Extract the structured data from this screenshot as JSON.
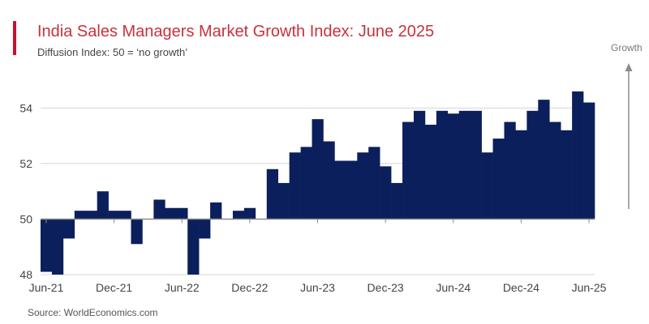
{
  "header": {
    "title": "India Sales Managers Market Growth Index: June 2025",
    "subtitle": "Diffusion Index: 50 = ‘no growth’"
  },
  "annotation": {
    "growth_label": "Growth"
  },
  "footer": {
    "source": "Source: WorldEconomics.com"
  },
  "colors": {
    "bar": "#0b1f5c",
    "accent": "#c8102e",
    "title": "#c8323c",
    "gridline": "#d4d4d4",
    "baseline": "#8c8c8c"
  },
  "chart_data": {
    "type": "bar",
    "title": "India Sales Managers Market Growth Index: June 2025",
    "subtitle": "Diffusion Index: 50 = ‘no growth’",
    "xlabel": "",
    "ylabel": "",
    "baseline": 50,
    "ylim": [
      48,
      55.5
    ],
    "yticks": [
      48,
      50,
      52,
      54
    ],
    "grid": true,
    "categories": [
      "Jun-21",
      "Jul-21",
      "Aug-21",
      "Sep-21",
      "Oct-21",
      "Nov-21",
      "Dec-21",
      "Jan-22",
      "Feb-22",
      "Mar-22",
      "Apr-22",
      "May-22",
      "Jun-22",
      "Jul-22",
      "Aug-22",
      "Sep-22",
      "Oct-22",
      "Nov-22",
      "Dec-22",
      "Jan-23",
      "Feb-23",
      "Mar-23",
      "Apr-23",
      "May-23",
      "Jun-23",
      "Jul-23",
      "Aug-23",
      "Sep-23",
      "Oct-23",
      "Nov-23",
      "Dec-23",
      "Jan-24",
      "Feb-24",
      "Mar-24",
      "Apr-24",
      "May-24",
      "Jun-24",
      "Jul-24",
      "Aug-24",
      "Sep-24",
      "Oct-24",
      "Nov-24",
      "Dec-24",
      "Jan-25",
      "Feb-25",
      "Mar-25",
      "Apr-25",
      "May-25",
      "Jun-25"
    ],
    "values": [
      48.1,
      47.9,
      49.3,
      50.3,
      50.3,
      51.0,
      50.3,
      50.3,
      49.1,
      50.0,
      50.7,
      50.4,
      50.4,
      47.9,
      49.3,
      50.6,
      50.0,
      50.3,
      50.4,
      50.0,
      51.8,
      51.3,
      52.4,
      52.6,
      53.6,
      52.8,
      52.1,
      52.1,
      52.4,
      52.6,
      51.9,
      51.3,
      53.5,
      53.9,
      53.4,
      53.9,
      53.8,
      53.9,
      53.9,
      52.4,
      52.9,
      53.5,
      53.2,
      53.9,
      54.3,
      53.5,
      53.2,
      54.6,
      54.2
    ],
    "xtick_labels": [
      "Jun-21",
      "Dec-21",
      "Jun-22",
      "Dec-22",
      "Jun-23",
      "Dec-23",
      "Jun-24",
      "Dec-24",
      "Jun-25"
    ],
    "xtick_every": 6
  }
}
